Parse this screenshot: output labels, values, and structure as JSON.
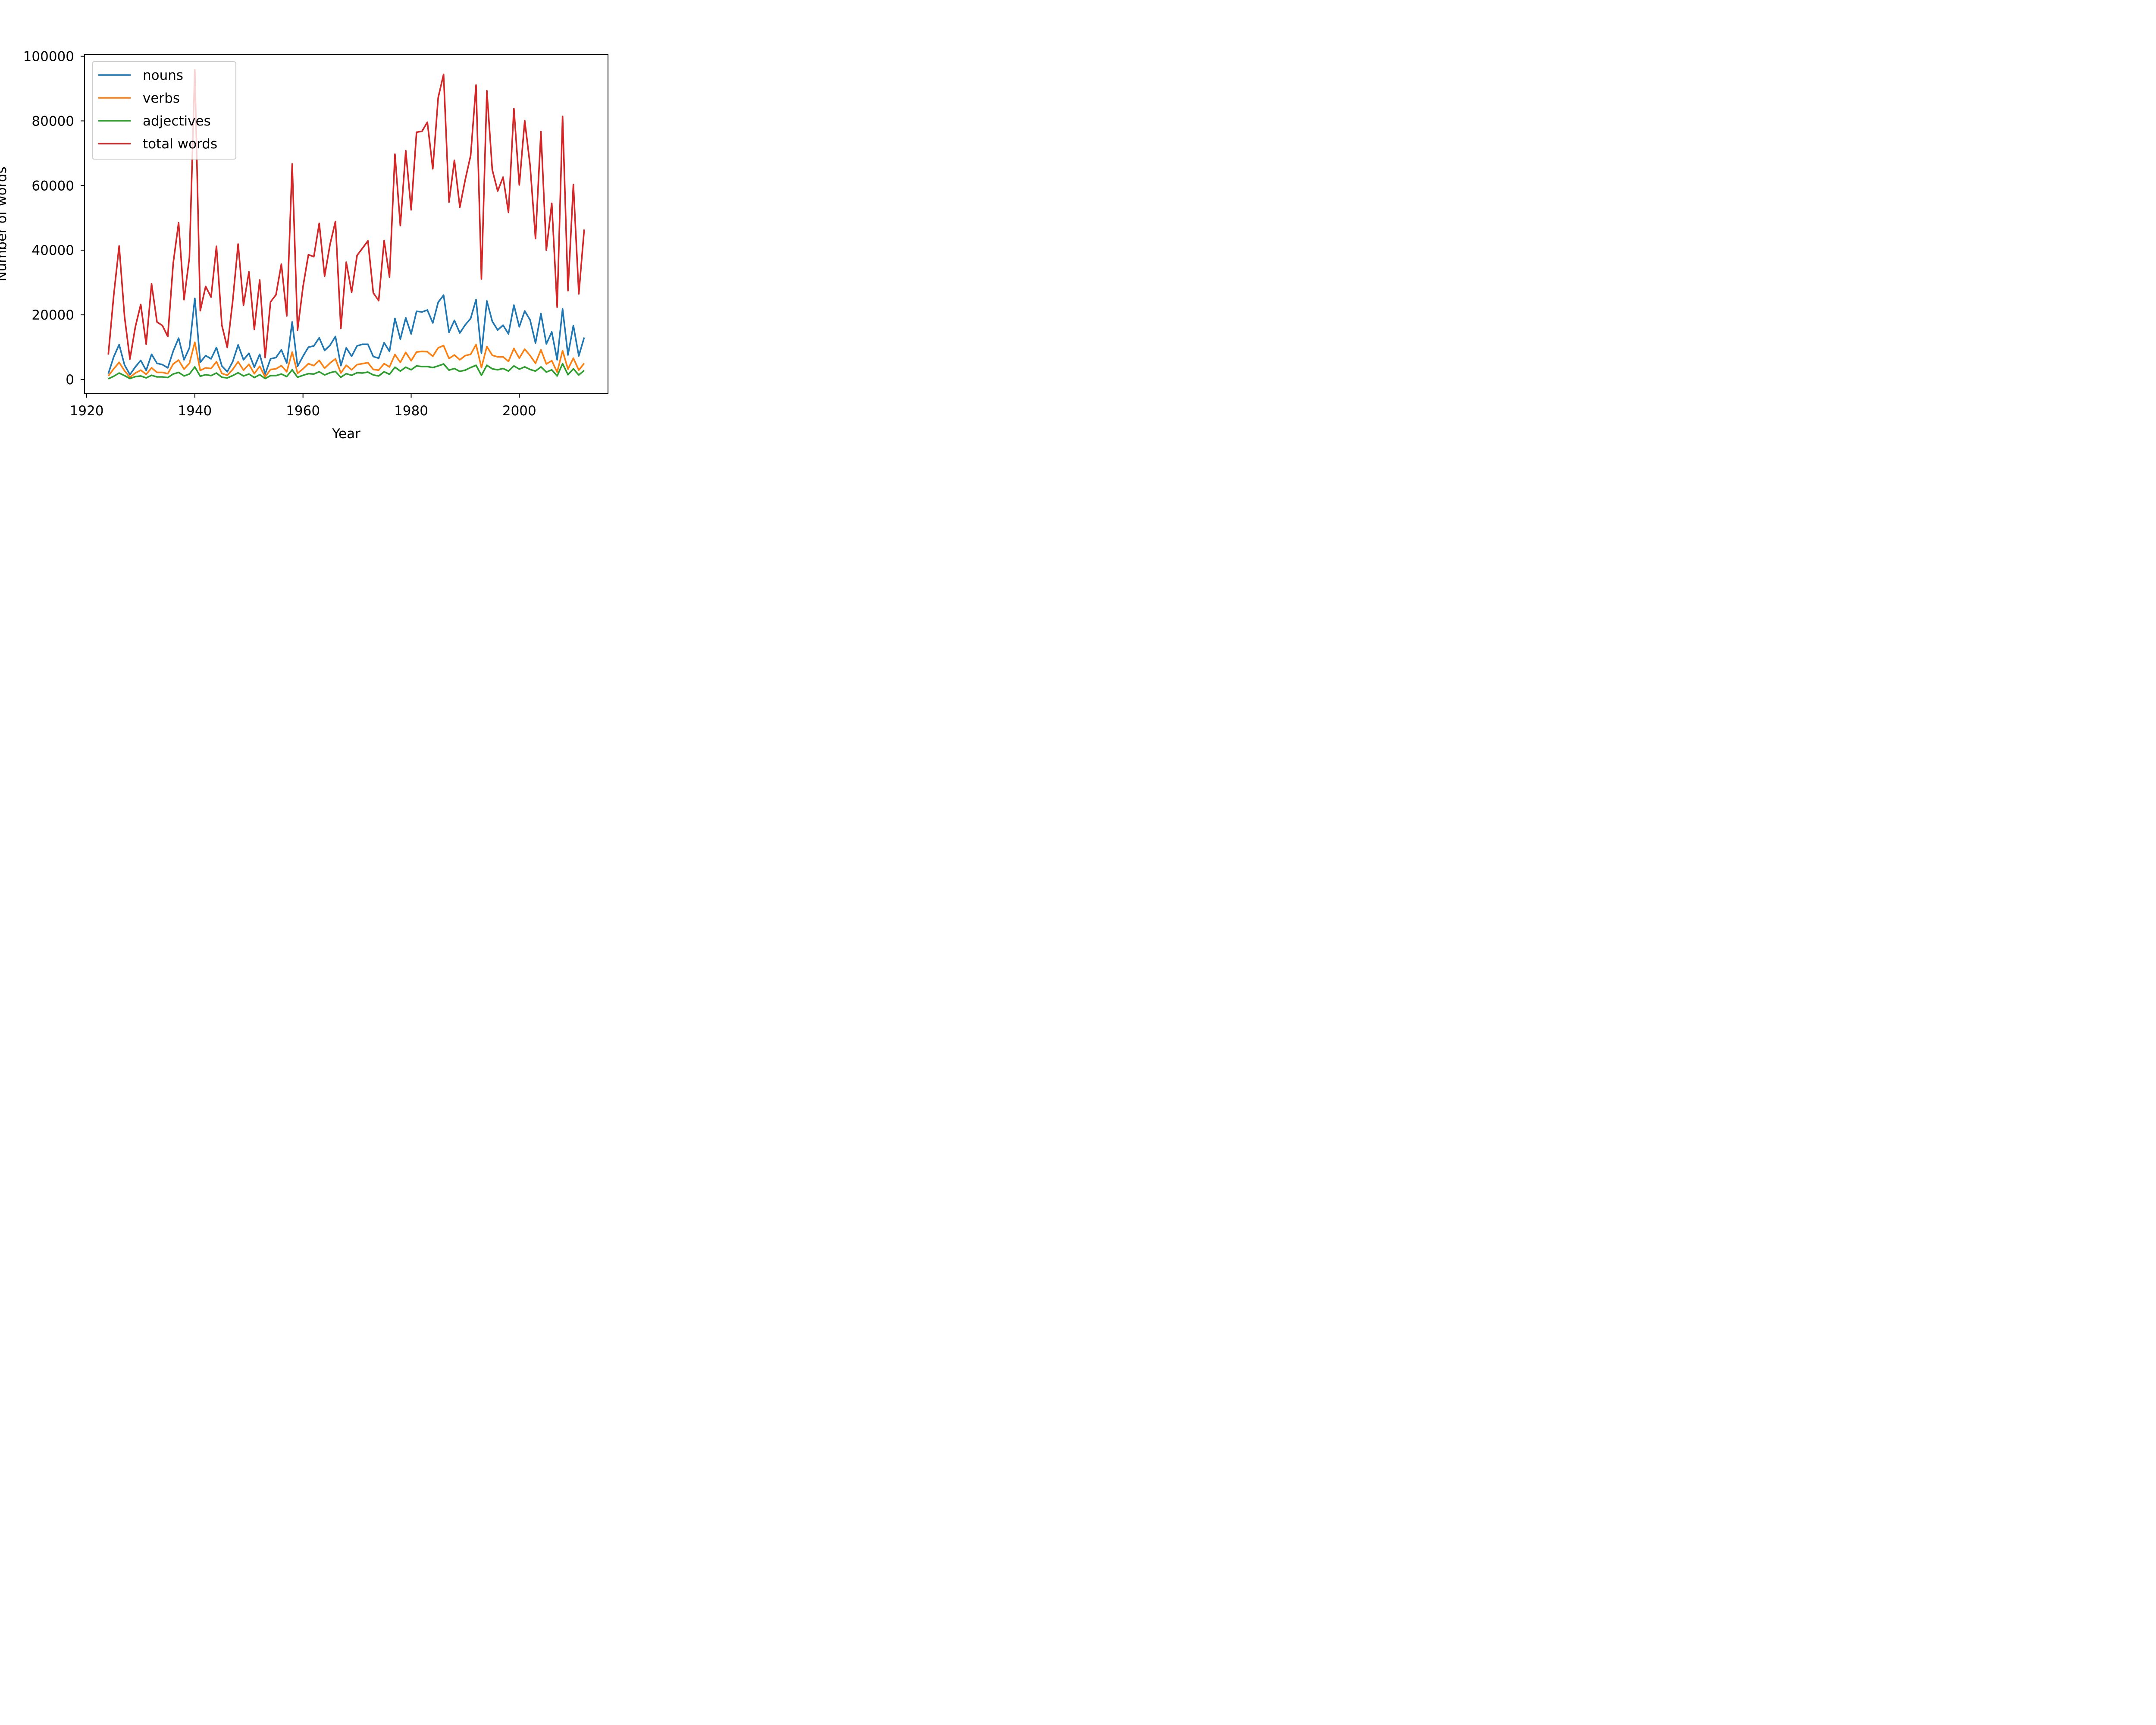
{
  "chart_data": {
    "type": "line",
    "title": "",
    "xlabel": "Year",
    "ylabel": "Number of words",
    "xlim": [
      1919.6,
      2016.4
    ],
    "ylim": [
      -4400,
      100600
    ],
    "x_ticks": [
      1920,
      1940,
      1960,
      1980,
      2000
    ],
    "y_ticks": [
      0,
      20000,
      40000,
      60000,
      80000,
      100000
    ],
    "grid": false,
    "legend_position": "upper-left",
    "x": [
      1924,
      1925,
      1926,
      1927,
      1928,
      1929,
      1930,
      1931,
      1932,
      1933,
      1934,
      1935,
      1936,
      1937,
      1938,
      1939,
      1940,
      1941,
      1942,
      1943,
      1944,
      1945,
      1946,
      1947,
      1948,
      1949,
      1950,
      1951,
      1952,
      1953,
      1954,
      1955,
      1956,
      1957,
      1958,
      1959,
      1960,
      1961,
      1962,
      1963,
      1964,
      1965,
      1966,
      1967,
      1968,
      1969,
      1970,
      1971,
      1972,
      1973,
      1974,
      1975,
      1976,
      1977,
      1978,
      1979,
      1980,
      1981,
      1982,
      1983,
      1984,
      1985,
      1986,
      1987,
      1988,
      1989,
      1990,
      1991,
      1992,
      1993,
      1994,
      1995,
      1996,
      1997,
      1998,
      1999,
      2000,
      2001,
      2002,
      2003,
      2004,
      2005,
      2006,
      2007,
      2008,
      2009,
      2010,
      2011,
      2012
    ],
    "series": [
      {
        "name": "nouns",
        "color": "#1f77b4",
        "values": [
          1800,
          7000,
          10800,
          4500,
          1500,
          3900,
          5900,
          2800,
          7800,
          5000,
          4600,
          3600,
          8800,
          12800,
          6100,
          9800,
          25100,
          5300,
          7400,
          6400,
          9900,
          4200,
          2400,
          5500,
          10700,
          6100,
          8100,
          3800,
          7800,
          1700,
          6400,
          6800,
          9200,
          5100,
          17800,
          4100,
          7200,
          10000,
          10400,
          12900,
          9000,
          10600,
          13300,
          4300,
          9800,
          7200,
          10400,
          10900,
          10900,
          7100,
          6600,
          11400,
          8700,
          18900,
          12500,
          19100,
          14100,
          21100,
          20900,
          21500,
          17500,
          23900,
          26100,
          14600,
          18300,
          14400,
          16900,
          18900,
          24700,
          8100,
          24300,
          18000,
          15300,
          16800,
          14100,
          23000,
          16300,
          21200,
          18400,
          11300,
          20400,
          11000,
          14700,
          6100,
          21800,
          7600,
          16700,
          7300,
          13000
        ]
      },
      {
        "name": "verbs",
        "color": "#ff7f0e",
        "values": [
          1100,
          3300,
          5300,
          2700,
          700,
          2000,
          2900,
          1600,
          3600,
          2200,
          2200,
          1800,
          4800,
          6000,
          3200,
          5000,
          11500,
          2800,
          3600,
          3400,
          5500,
          1900,
          1300,
          3100,
          5500,
          2900,
          4700,
          1800,
          4100,
          800,
          3100,
          3300,
          4300,
          2400,
          8500,
          1900,
          3300,
          4900,
          4300,
          5900,
          3500,
          5100,
          6400,
          2000,
          4400,
          3000,
          4600,
          4900,
          5200,
          3100,
          2900,
          4900,
          3900,
          7700,
          5300,
          8400,
          5800,
          8500,
          8700,
          8600,
          7200,
          9800,
          10500,
          6500,
          7600,
          6100,
          7400,
          7800,
          10800,
          3700,
          10200,
          7500,
          7000,
          7000,
          5600,
          9600,
          6600,
          9400,
          7400,
          5000,
          9200,
          4800,
          5800,
          2300,
          8900,
          3200,
          6600,
          2900,
          5000
        ]
      },
      {
        "name": "adjectives",
        "color": "#2ca02c",
        "values": [
          200,
          1000,
          2000,
          1200,
          300,
          900,
          1100,
          500,
          1300,
          800,
          800,
          600,
          1700,
          2200,
          1100,
          1700,
          3900,
          1000,
          1500,
          1200,
          2000,
          700,
          500,
          1200,
          2100,
          1100,
          1700,
          600,
          1500,
          300,
          1200,
          1200,
          1700,
          900,
          3000,
          700,
          1300,
          1800,
          1700,
          2400,
          1400,
          2100,
          2500,
          700,
          1800,
          1300,
          2100,
          2000,
          2300,
          1400,
          1100,
          2400,
          1600,
          3800,
          2600,
          3800,
          3000,
          4200,
          4000,
          4000,
          3700,
          4200,
          4800,
          2900,
          3400,
          2500,
          2900,
          3700,
          4400,
          1300,
          4400,
          3300,
          3000,
          3400,
          2600,
          4200,
          3200,
          3900,
          3100,
          2600,
          3900,
          2300,
          3000,
          1100,
          4900,
          1500,
          3300,
          1400,
          2800
        ]
      },
      {
        "name": "total words",
        "color": "#d62728",
        "values": [
          7700,
          26000,
          41300,
          19500,
          6300,
          16300,
          23200,
          10900,
          29600,
          17800,
          16700,
          13300,
          36000,
          48500,
          24700,
          37800,
          95800,
          21300,
          28800,
          25500,
          41200,
          16800,
          9900,
          24200,
          41900,
          23000,
          33300,
          15500,
          30800,
          6800,
          24000,
          26200,
          35700,
          19700,
          66700,
          15300,
          28700,
          38600,
          38000,
          48300,
          32000,
          41800,
          48900,
          15800,
          36300,
          27000,
          38400,
          40600,
          42900,
          26800,
          24400,
          43000,
          31700,
          69700,
          47600,
          70800,
          52500,
          76500,
          76800,
          79600,
          65200,
          87200,
          94400,
          54900,
          67800,
          53300,
          61800,
          69300,
          91100,
          31100,
          89300,
          64900,
          58300,
          62600,
          51700,
          83800,
          60200,
          80100,
          66200,
          43600,
          76700,
          40000,
          54500,
          22400,
          81400,
          27500,
          60300,
          26500,
          46400
        ]
      }
    ]
  }
}
